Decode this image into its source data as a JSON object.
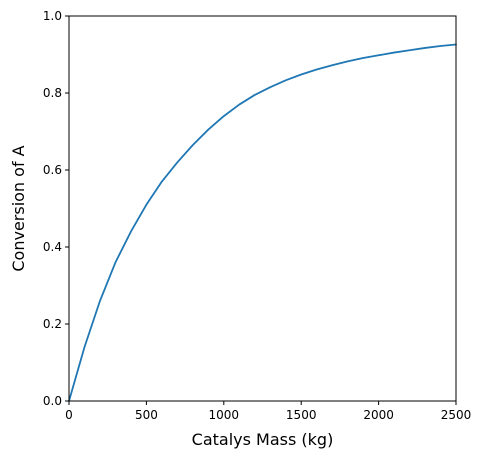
{
  "chart_data": {
    "type": "line",
    "title": "",
    "xlabel": "Catalys Mass (kg)",
    "ylabel": "Conversion of A",
    "xlim": [
      0,
      2500
    ],
    "ylim": [
      0.0,
      1.0
    ],
    "xticks": [
      0,
      500,
      1000,
      1500,
      2000,
      2500
    ],
    "xtick_labels": [
      "0",
      "500",
      "1000",
      "1500",
      "2000",
      "2500"
    ],
    "yticks": [
      0.0,
      0.2,
      0.4,
      0.6,
      0.8,
      1.0
    ],
    "ytick_labels": [
      "0.0",
      "0.2",
      "0.4",
      "0.6",
      "0.8",
      "1.0"
    ],
    "grid": false,
    "series": [
      {
        "color": "#1f77b4",
        "x": [
          0,
          100,
          200,
          300,
          400,
          500,
          600,
          700,
          800,
          900,
          1000,
          1100,
          1200,
          1300,
          1400,
          1500,
          1600,
          1700,
          1800,
          1900,
          2000,
          2100,
          2200,
          2300,
          2400,
          2500
        ],
        "y": [
          0.0,
          0.14,
          0.26,
          0.36,
          0.44,
          0.51,
          0.57,
          0.62,
          0.665,
          0.705,
          0.74,
          0.77,
          0.795,
          0.815,
          0.833,
          0.848,
          0.861,
          0.872,
          0.882,
          0.891,
          0.898,
          0.905,
          0.911,
          0.917,
          0.922,
          0.926
        ]
      }
    ]
  }
}
